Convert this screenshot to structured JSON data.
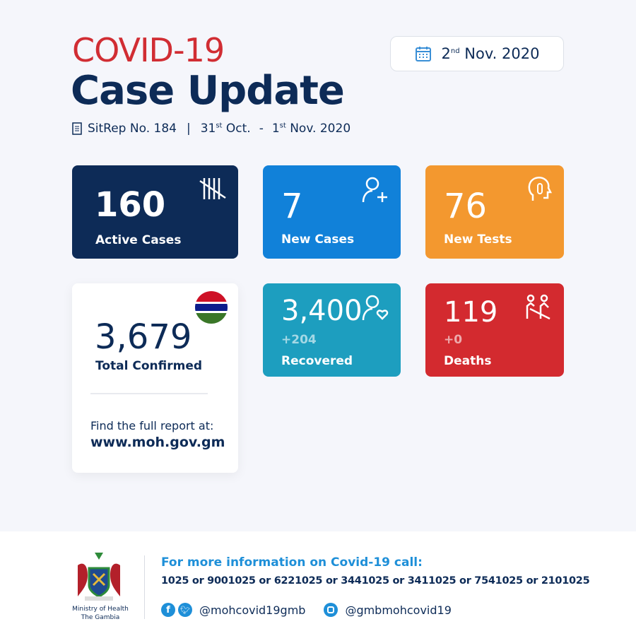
{
  "header": {
    "title_line1": "COVID-19",
    "title_line2": "Case Update",
    "sitrep": "SitRep No. 184",
    "sep": "|",
    "range_start_day": "31",
    "range_start_sup": "st",
    "range_start_rest": "Oct.",
    "dash": "-",
    "range_end_day": "1",
    "range_end_sup": "st",
    "range_end_rest": "Nov. 2020"
  },
  "date": {
    "day": "2",
    "sup": "nd",
    "rest": "Nov. 2020",
    "icon": "calendar-icon"
  },
  "cards": {
    "active": {
      "value": "160",
      "label": "Active Cases",
      "color": "#0d2b57",
      "icon": "tally-icon"
    },
    "new_cases": {
      "value": "7",
      "label": "New Cases",
      "color": "#1181d9",
      "icon": "add-user-icon"
    },
    "new_tests": {
      "value": "76",
      "label": "New Tests",
      "color": "#f3982f",
      "icon": "thermometer-head-icon"
    },
    "total": {
      "value": "3,679",
      "label": "Total Confirmed",
      "report_text": "Find the full report at:",
      "report_url": "www.moh.gov.gm",
      "icon": "gambia-flag-icon"
    },
    "recovered": {
      "value": "3,400",
      "delta": "+204",
      "label": "Recovered",
      "color": "#1d9ebf",
      "icon": "user-heart-icon"
    },
    "deaths": {
      "value": "119",
      "delta": "+0",
      "label": "Deaths",
      "color": "#d32a2f",
      "icon": "people-icon"
    }
  },
  "footer": {
    "ministry_line1": "Ministry of Health",
    "ministry_line2": "The Gambia",
    "info_title": "For more information on Covid-19 call:",
    "phones": "1025 or 9001025 or 6221025 or 3441025 or 3411025 or 7541025 or 2101025",
    "handle_fb_tw": "@mohcovid19gmb",
    "handle_ig": "@gmbmohcovid19"
  }
}
